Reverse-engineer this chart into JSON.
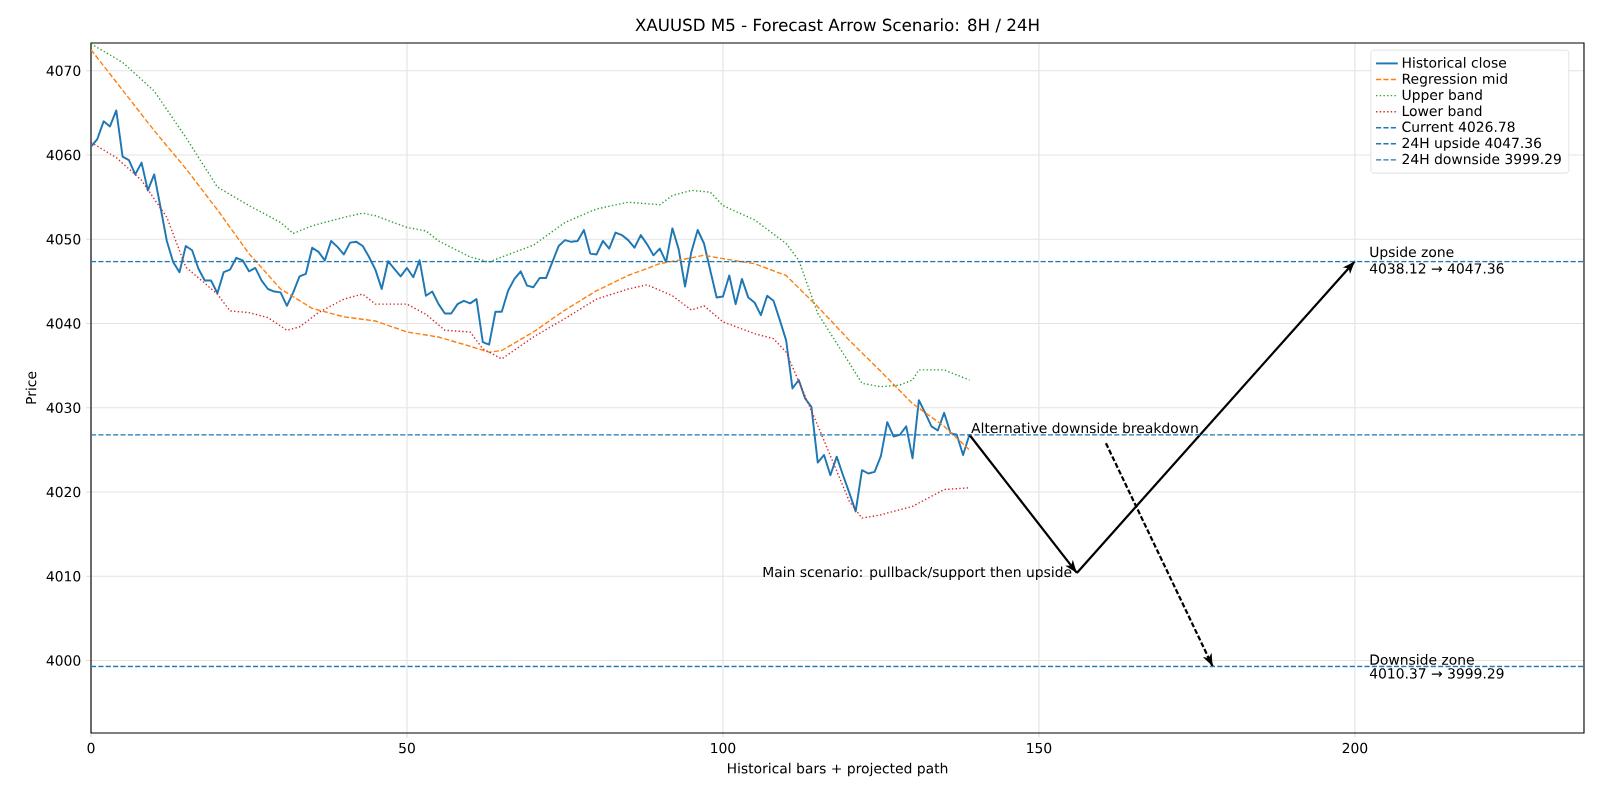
{
  "chart_data": {
    "type": "line",
    "title": "XAUUSD M5 - Forecast Arrow Scenario: 8H / 24H",
    "xlabel": "Historical bars + projected path",
    "ylabel": "Price",
    "xlim": [
      0,
      236.25
    ],
    "ylim": [
      3991.4,
      4073.3
    ],
    "xticks": [
      0,
      50,
      100,
      150,
      200
    ],
    "yticks": [
      4000,
      4010,
      4020,
      4030,
      4040,
      4050,
      4060,
      4070
    ],
    "grid": true,
    "legend": "top right",
    "series": [
      {
        "name": "Historical close",
        "color": "#1f77b4",
        "line_style": "solid",
        "x": [
          0,
          1,
          2,
          3,
          4,
          5,
          6,
          7,
          8,
          9,
          10,
          11,
          12,
          13,
          14,
          15,
          16,
          17,
          18,
          19,
          20,
          21,
          22,
          23,
          24,
          25,
          26,
          27,
          28,
          29,
          30,
          31,
          32,
          33,
          34,
          35,
          36,
          37,
          38,
          39,
          40,
          41,
          42,
          43,
          44,
          45,
          46,
          47,
          48,
          49,
          50,
          51,
          52,
          53,
          54,
          55,
          56,
          57,
          58,
          59,
          60,
          61,
          62,
          63,
          64,
          65,
          66,
          67,
          68,
          69,
          70,
          71,
          72,
          73,
          74,
          75,
          76,
          77,
          78,
          79,
          80,
          81,
          82,
          83,
          84,
          85,
          86,
          87,
          88,
          89,
          90,
          91,
          92,
          93,
          94,
          95,
          96,
          97,
          98,
          99,
          100,
          101,
          102,
          103,
          104,
          105,
          106,
          107,
          108,
          109,
          110,
          111,
          112,
          113,
          114,
          115,
          116,
          117,
          118,
          119,
          120,
          121,
          122,
          123,
          124,
          125,
          126,
          127,
          128,
          129,
          130,
          131,
          132,
          133,
          134,
          135,
          136,
          137,
          138,
          139
        ],
        "values": [
          4061.0,
          4061.9,
          4064.0,
          4063.4,
          4065.3,
          4059.8,
          4059.4,
          4057.7,
          4059.1,
          4055.8,
          4057.7,
          4053.8,
          4049.8,
          4047.3,
          4046.1,
          4049.2,
          4048.7,
          4046.5,
          4045.1,
          4045.1,
          4043.6,
          4046.1,
          4046.4,
          4047.8,
          4047.5,
          4046.2,
          4046.6,
          4045.1,
          4044.1,
          4043.8,
          4043.7,
          4042.1,
          4043.7,
          4045.6,
          4045.9,
          4049.0,
          4048.5,
          4047.5,
          4049.8,
          4049.1,
          4048.2,
          4049.6,
          4049.7,
          4049.2,
          4047.9,
          4046.4,
          4044.1,
          4047.4,
          4046.5,
          4045.6,
          4046.6,
          4045.5,
          4047.5,
          4043.3,
          4043.8,
          4042.3,
          4041.2,
          4041.2,
          4042.3,
          4042.7,
          4042.4,
          4042.9,
          4037.8,
          4037.5,
          4041.4,
          4041.4,
          4043.9,
          4045.3,
          4046.2,
          4044.5,
          4044.3,
          4045.4,
          4045.4,
          4047.3,
          4049.2,
          4049.9,
          4049.7,
          4049.8,
          4051.1,
          4048.3,
          4048.2,
          4049.8,
          4048.9,
          4050.8,
          4050.5,
          4049.9,
          4049.0,
          4050.5,
          4049.4,
          4048.1,
          4048.9,
          4047.3,
          4051.3,
          4048.8,
          4044.4,
          4048.5,
          4051.1,
          4049.5,
          4046.3,
          4043.1,
          4043.2,
          4045.7,
          4042.3,
          4045.3,
          4043.1,
          4042.5,
          4041.0,
          4043.3,
          4042.7,
          4040.4,
          4038.0,
          4032.3,
          4033.3,
          4031.1,
          4030.1,
          4023.5,
          4024.4,
          4022.0,
          4024.2,
          4022.0,
          4019.9,
          4017.7,
          4022.6,
          4022.2,
          4022.4,
          4024.3,
          4028.3,
          4026.6,
          4026.8,
          4027.8,
          4024.0,
          4030.9,
          4029.4,
          4027.8,
          4027.3,
          4029.4,
          4027.0,
          4026.8,
          4024.4,
          4026.8
        ]
      },
      {
        "name": "Regression mid",
        "color": "#ff7f0e",
        "line_style": "dashed",
        "x": [
          0,
          5,
          10,
          15,
          20,
          25,
          30,
          35,
          40,
          45,
          50,
          55,
          60,
          63,
          65,
          70,
          75,
          80,
          85,
          90,
          95,
          97,
          100,
          105,
          110,
          115,
          120,
          125,
          130,
          135,
          139
        ],
        "values": [
          4072.5,
          4067.7,
          4062.9,
          4058.4,
          4053.5,
          4048.3,
          4044.1,
          4041.8,
          4040.8,
          4040.3,
          4039.0,
          4038.4,
          4037.3,
          4036.6,
          4036.8,
          4039.0,
          4041.6,
          4043.9,
          4045.7,
          4047.1,
          4047.8,
          4048.1,
          4047.7,
          4047.1,
          4045.7,
          4042.0,
          4038.0,
          4034.3,
          4030.5,
          4027.8,
          4025.0
        ]
      },
      {
        "name": "Upper band",
        "color": "#2ca02c",
        "line_style": "dotted",
        "x": [
          0,
          5,
          10,
          15,
          20,
          25,
          30,
          32,
          35,
          40,
          43,
          45,
          50,
          53,
          55,
          60,
          63,
          65,
          70,
          75,
          80,
          85,
          90,
          92,
          95,
          98,
          100,
          105,
          110,
          112,
          115,
          120,
          122,
          125,
          128,
          130,
          131,
          135,
          139
        ],
        "values": [
          4073.2,
          4071.0,
          4067.6,
          4062.1,
          4056.2,
          4054.0,
          4052.0,
          4050.7,
          4051.6,
          4052.6,
          4053.1,
          4052.8,
          4051.4,
          4051.0,
          4049.8,
          4047.9,
          4047.3,
          4047.9,
          4049.3,
          4052.0,
          4053.6,
          4054.4,
          4054.1,
          4055.2,
          4055.8,
          4055.6,
          4054.0,
          4052.3,
          4049.5,
          4047.5,
          4041.2,
          4035.3,
          4032.9,
          4032.5,
          4032.7,
          4033.3,
          4034.5,
          4034.5,
          4033.3
        ]
      },
      {
        "name": "Lower band",
        "color": "#d62728",
        "line_style": "dotted",
        "x": [
          0,
          4,
          8,
          12,
          15,
          20,
          22,
          25,
          28,
          31,
          33,
          36,
          40,
          43,
          45,
          50,
          53,
          56,
          60,
          62,
          65,
          70,
          75,
          80,
          85,
          88,
          92,
          95,
          97,
          100,
          105,
          108,
          110,
          115,
          120,
          122,
          125,
          130,
          135,
          139
        ],
        "values": [
          4061.5,
          4059.7,
          4057.0,
          4052.6,
          4046.7,
          4043.5,
          4041.5,
          4041.3,
          4040.7,
          4039.2,
          4039.6,
          4041.3,
          4042.9,
          4043.5,
          4042.3,
          4042.3,
          4041.1,
          4039.2,
          4039.0,
          4037.0,
          4035.8,
          4038.4,
          4040.6,
          4042.9,
          4044.1,
          4044.6,
          4043.3,
          4041.6,
          4042.1,
          4040.2,
          4038.8,
          4038.2,
          4036.6,
          4027.9,
          4018.9,
          4016.9,
          4017.3,
          4018.3,
          4020.3,
          4020.5
        ]
      },
      {
        "color": "#000000",
        "line_style": "solid",
        "x": [
          139,
          156
        ],
        "values": [
          4026.8,
          4010.4
        ]
      },
      {
        "color": "#000000",
        "line_style": "solid",
        "x": [
          156,
          200
        ],
        "values": [
          4010.4,
          4047.4
        ]
      },
      {
        "color": "#000000",
        "line_style": "dashed",
        "x": [
          160.6,
          177.5
        ],
        "values": [
          4025.8,
          3999.3
        ]
      }
    ],
    "ref_lines": [
      {
        "axis": "y",
        "value": 4026.78,
        "label": "Current 4026.78",
        "color": "#1f77b4",
        "line_style": "dashed"
      },
      {
        "axis": "y",
        "value": 4047.36,
        "label": "24H upside 4047.36",
        "color": "#1f77b4",
        "line_style": "dashed"
      },
      {
        "axis": "y",
        "value": 3999.29,
        "label": "24H downside 3999.29",
        "color": "#1f77b4",
        "line_style": "dashed"
      }
    ],
    "annotations": [
      {
        "text": "Main scenario: pullback/support then upside",
        "x": 155.5,
        "y": 4010.37
      },
      {
        "text": "Alternative downside breakdown",
        "x": 139,
        "y": 4026.78
      },
      {
        "text": "Upside zone",
        "x": 202,
        "y": 4047.36
      },
      {
        "text": "4038.12 → 4047.36",
        "x": 202,
        "y": 4047.36
      },
      {
        "text": "Downside zone",
        "x": 202,
        "y": 3999.29
      },
      {
        "text": "4010.37 → 3999.29",
        "x": 202,
        "y": 3999.29
      }
    ]
  }
}
